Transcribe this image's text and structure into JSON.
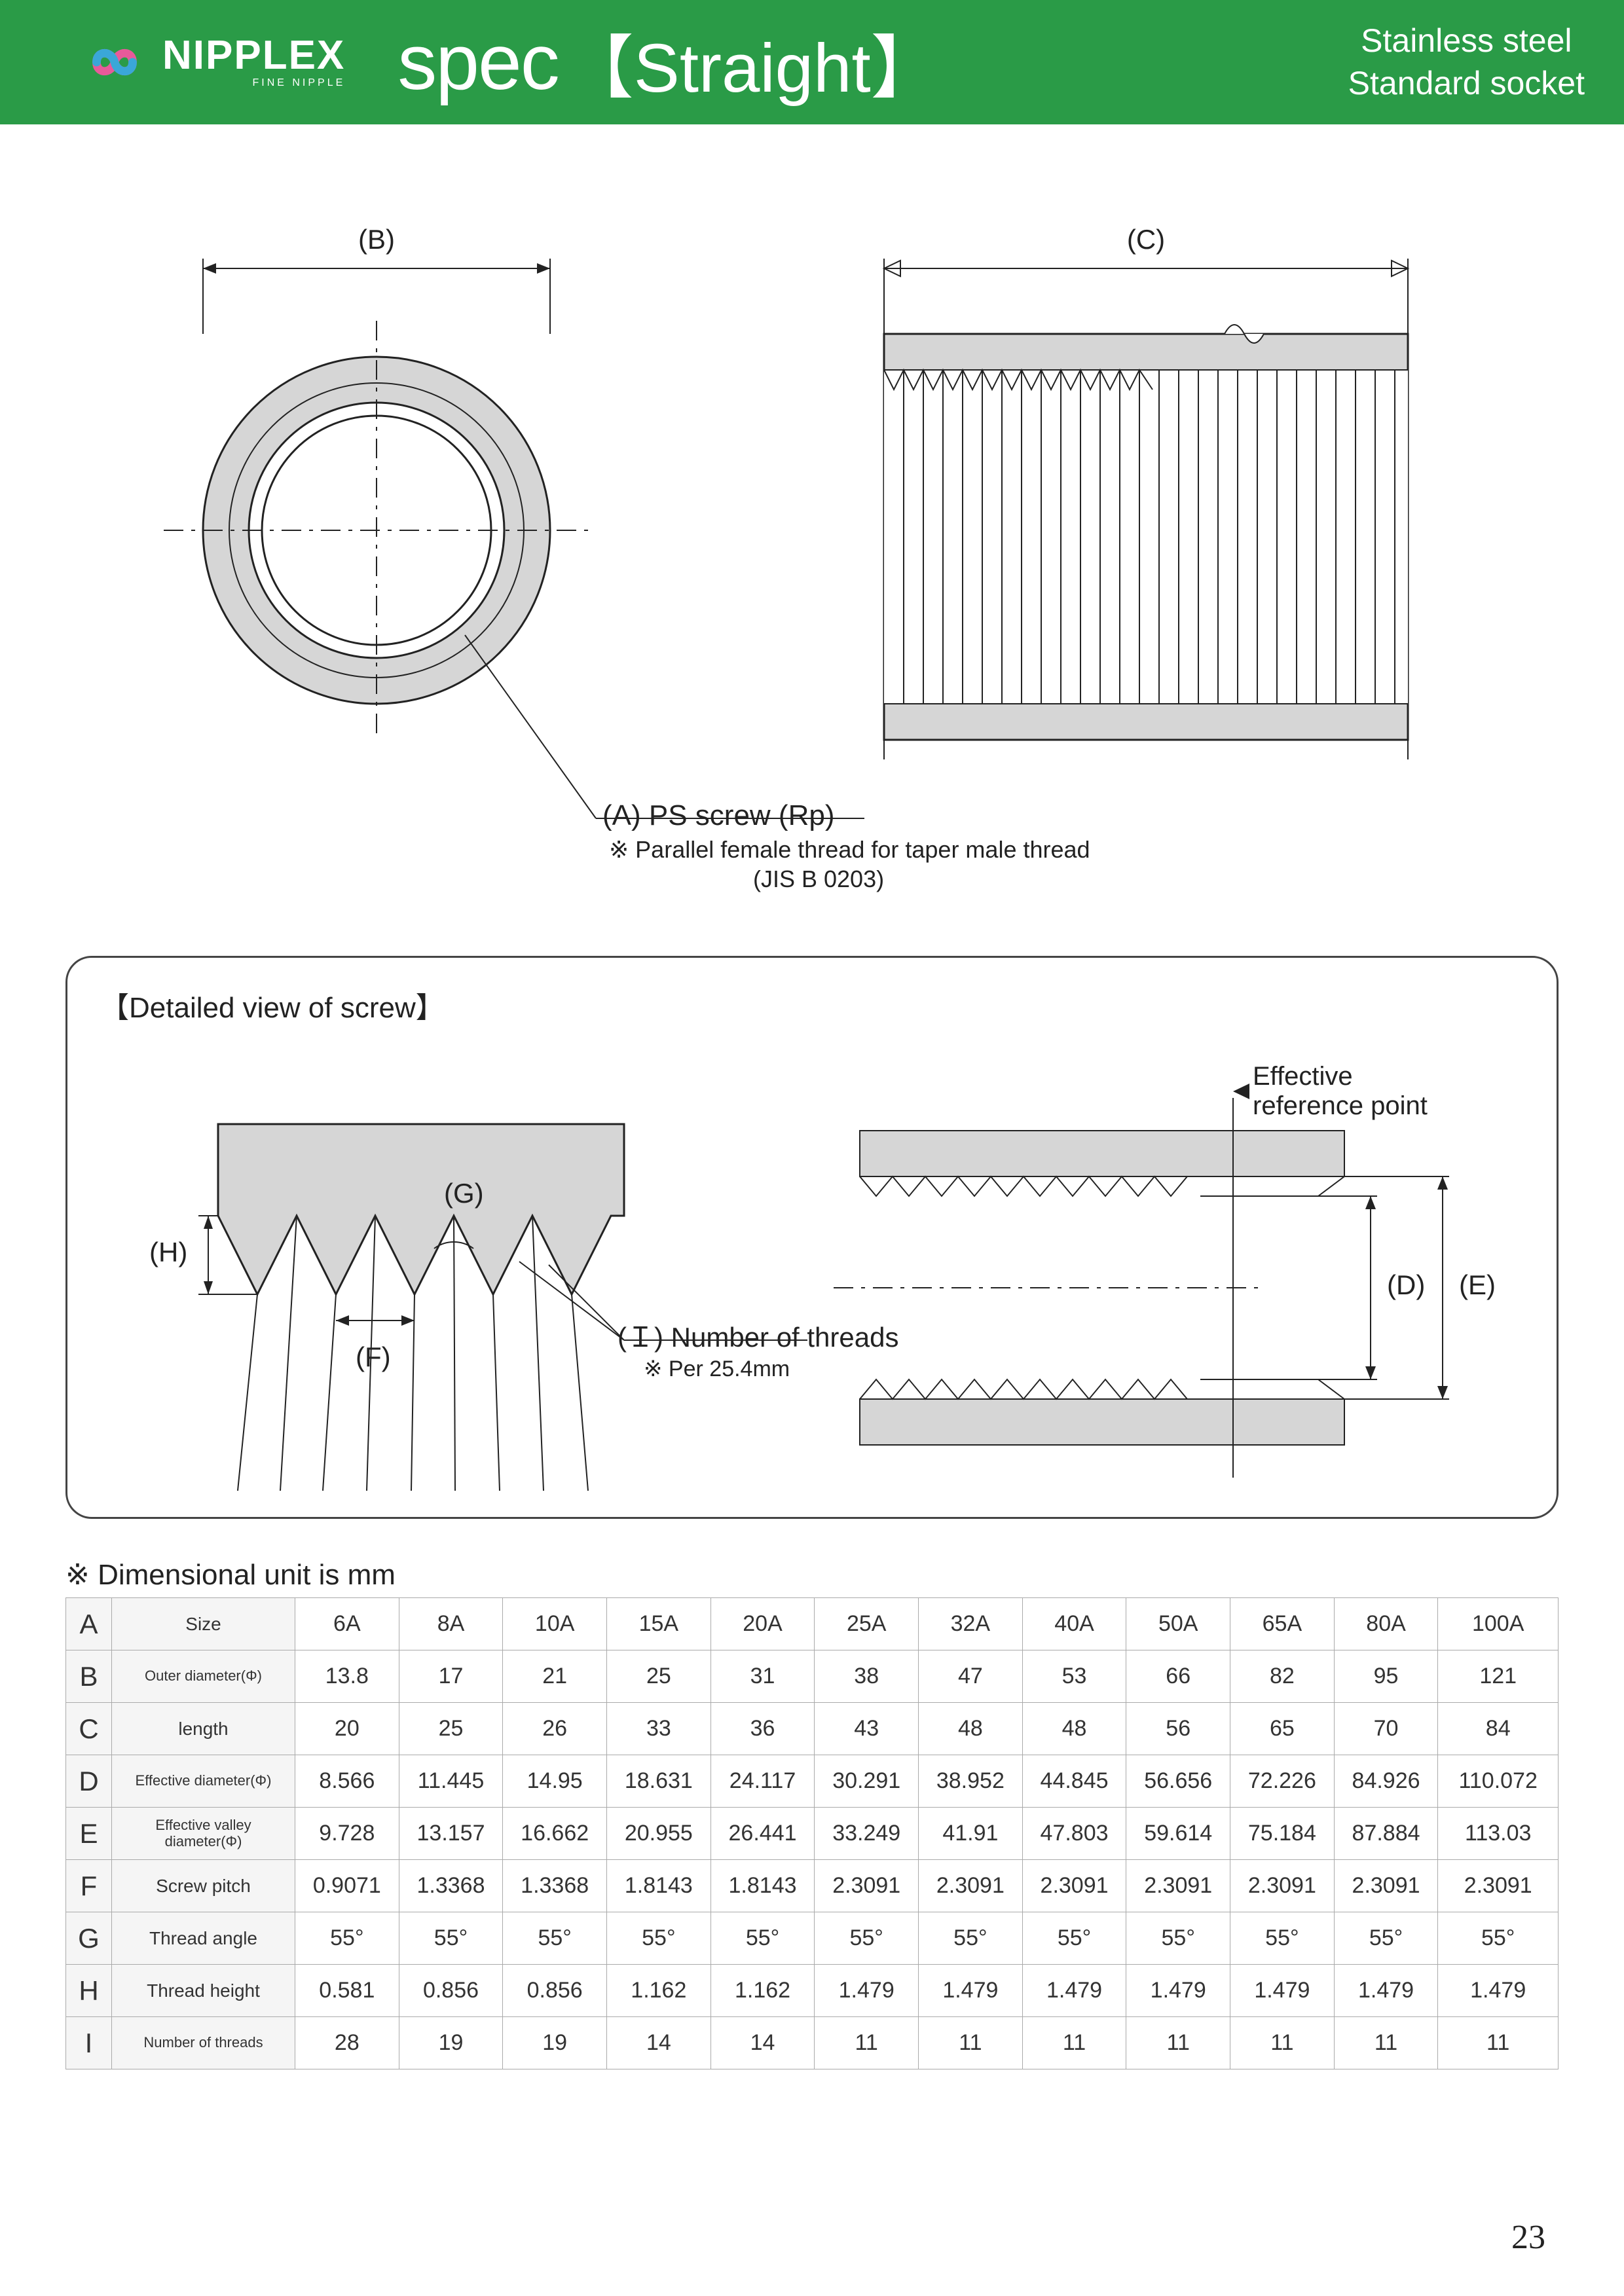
{
  "header": {
    "brand": "NIPPLEX",
    "brand_sub": "FINE NIPPLE",
    "title": "spec",
    "title_bracket": "【Straight】",
    "right_line1": "Stainless steel",
    "right_line2": "Standard socket",
    "bg_color": "#2a9b47",
    "logo_colors": {
      "pink": "#e85a9a",
      "blue": "#3aa7d8"
    }
  },
  "diagram_top": {
    "label_B": "(B)",
    "label_C": "(C)",
    "screw_label": "(A) PS screw (Rp)",
    "note_line1": "※ Parallel female thread for taper male thread",
    "note_line2": "(JIS B 0203)",
    "ring_fill": "#d6d6d6",
    "stroke": "#222222"
  },
  "detail": {
    "title": "【Detailed view of screw】",
    "label_H": "(H)",
    "label_G": "(G)",
    "label_F": "(F)",
    "label_I": "(Ｉ) Number of threads",
    "note_I": "※ Per 25.4mm",
    "label_D": "(D)",
    "label_E": "(E)",
    "ref_point": "Effective\nreference point",
    "fill": "#d6d6d6",
    "stroke": "#222222"
  },
  "table": {
    "note": "※ Dimensional unit is mm",
    "columns_sizes": [
      "6A",
      "8A",
      "10A",
      "15A",
      "20A",
      "25A",
      "32A",
      "40A",
      "50A",
      "65A",
      "80A",
      "100A"
    ],
    "rows": [
      {
        "letter": "A",
        "label": "Size",
        "label_small": false,
        "values": [
          "6A",
          "8A",
          "10A",
          "15A",
          "20A",
          "25A",
          "32A",
          "40A",
          "50A",
          "65A",
          "80A",
          "100A"
        ]
      },
      {
        "letter": "B",
        "label": "Outer diameter(Φ)",
        "label_small": true,
        "values": [
          "13.8",
          "17",
          "21",
          "25",
          "31",
          "38",
          "47",
          "53",
          "66",
          "82",
          "95",
          "121"
        ]
      },
      {
        "letter": "C",
        "label": "length",
        "label_small": false,
        "values": [
          "20",
          "25",
          "26",
          "33",
          "36",
          "43",
          "48",
          "48",
          "56",
          "65",
          "70",
          "84"
        ]
      },
      {
        "letter": "D",
        "label": "Effective diameter(Φ)",
        "label_small": true,
        "values": [
          "8.566",
          "11.445",
          "14.95",
          "18.631",
          "24.117",
          "30.291",
          "38.952",
          "44.845",
          "56.656",
          "72.226",
          "84.926",
          "110.072"
        ]
      },
      {
        "letter": "E",
        "label": "Effective valley diameter(Φ)",
        "label_small": true,
        "values": [
          "9.728",
          "13.157",
          "16.662",
          "20.955",
          "26.441",
          "33.249",
          "41.91",
          "47.803",
          "59.614",
          "75.184",
          "87.884",
          "113.03"
        ]
      },
      {
        "letter": "F",
        "label": "Screw pitch",
        "label_small": false,
        "values": [
          "0.9071",
          "1.3368",
          "1.3368",
          "1.8143",
          "1.8143",
          "2.3091",
          "2.3091",
          "2.3091",
          "2.3091",
          "2.3091",
          "2.3091",
          "2.3091"
        ]
      },
      {
        "letter": "G",
        "label": "Thread angle",
        "label_small": false,
        "values": [
          "55°",
          "55°",
          "55°",
          "55°",
          "55°",
          "55°",
          "55°",
          "55°",
          "55°",
          "55°",
          "55°",
          "55°"
        ]
      },
      {
        "letter": "H",
        "label": "Thread height",
        "label_small": false,
        "values": [
          "0.581",
          "0.856",
          "0.856",
          "1.162",
          "1.162",
          "1.479",
          "1.479",
          "1.479",
          "1.479",
          "1.479",
          "1.479",
          "1.479"
        ]
      },
      {
        "letter": "I",
        "label": "Number of threads",
        "label_small": true,
        "values": [
          "28",
          "19",
          "19",
          "14",
          "14",
          "11",
          "11",
          "11",
          "11",
          "11",
          "11",
          "11"
        ]
      }
    ],
    "border_color": "#aaaaaa",
    "bg_header": "#f5f5f5"
  },
  "page_number": "23"
}
